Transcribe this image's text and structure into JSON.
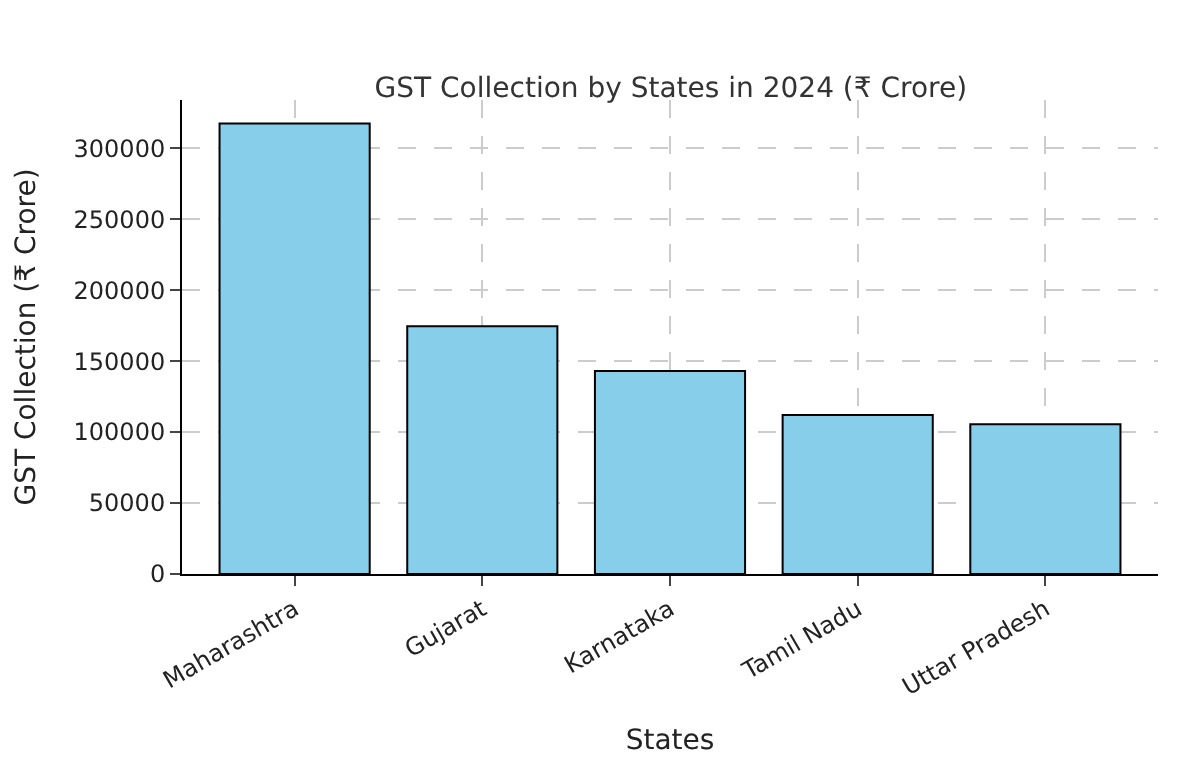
{
  "chart_data": {
    "type": "bar",
    "title": "GST Collection by States in 2024 (₹ Crore)",
    "xlabel": "States",
    "ylabel": "GST Collection (₹ Crore)",
    "categories": [
      "Maharashtra",
      "Gujarat",
      "Karnataka",
      "Tamil Nadu",
      "Uttar Pradesh"
    ],
    "values": [
      317500,
      174500,
      143000,
      112000,
      105500
    ],
    "color": "#87ceeb",
    "ylim": [
      0,
      334000
    ],
    "yticks": [
      0,
      50000,
      100000,
      150000,
      200000,
      250000,
      300000
    ],
    "grid": true
  }
}
